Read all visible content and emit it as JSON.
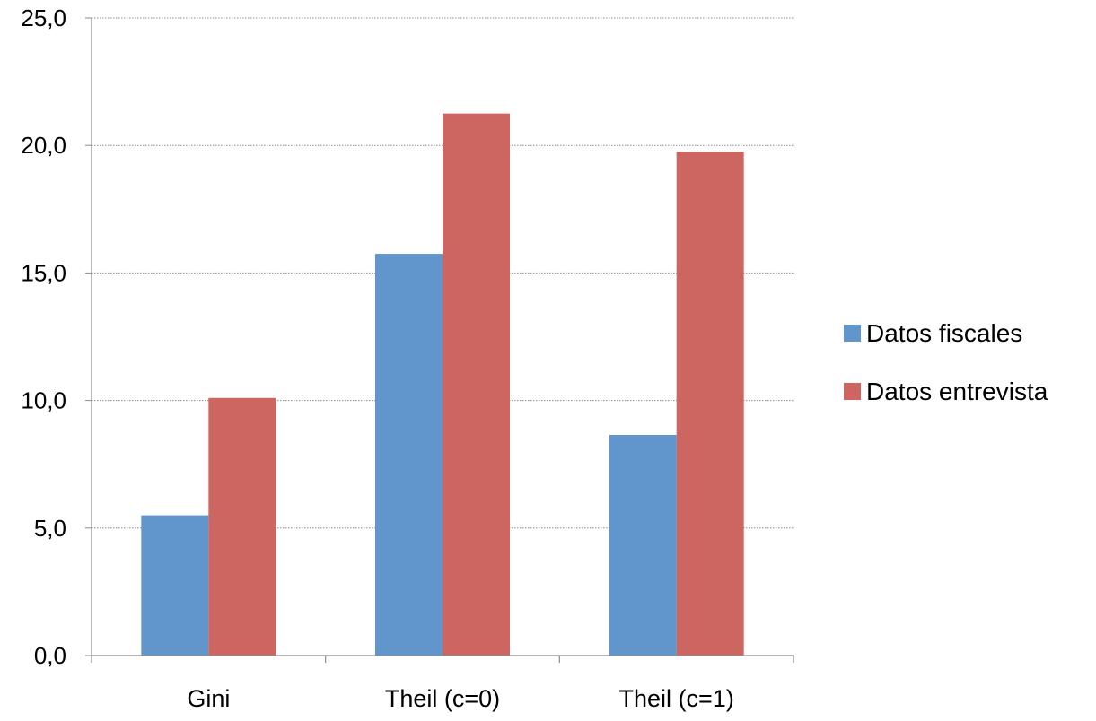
{
  "chart_data": {
    "type": "bar",
    "categories": [
      "Gini",
      "Theil (c=0)",
      "Theil (c=1)"
    ],
    "series": [
      {
        "name": "Datos fiscales",
        "values": [
          5.5,
          15.75,
          8.65
        ],
        "color": "#6096CB"
      },
      {
        "name": "Datos entrevista",
        "values": [
          10.1,
          21.25,
          19.75
        ],
        "color": "#CD6660"
      }
    ],
    "title": "",
    "xlabel": "",
    "ylabel": "",
    "ylim": [
      0,
      25
    ],
    "yticks": [
      0,
      5,
      10,
      15,
      20,
      25
    ],
    "ytick_labels": [
      "0,0",
      "5,0",
      "10,0",
      "15,0",
      "20,0",
      "25,0"
    ],
    "grid": true,
    "legend_position": "right"
  }
}
